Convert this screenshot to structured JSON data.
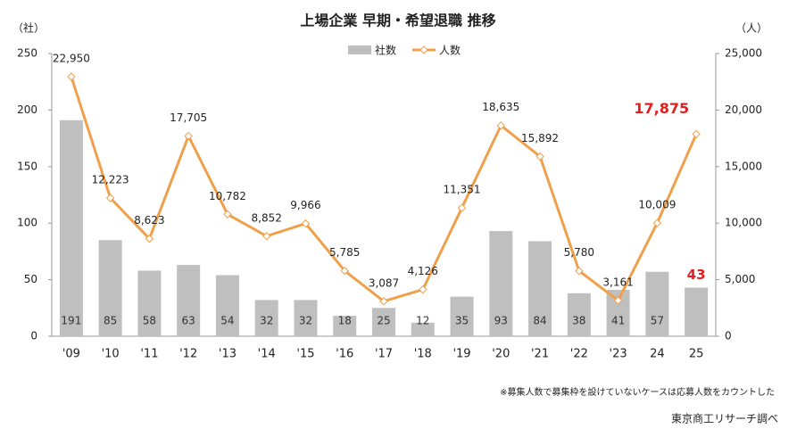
{
  "chart_data": {
    "type": "bar-line",
    "title": "上場企業 早期・希望退職 推移",
    "y_unit": "（社）",
    "y2_unit": "（人）",
    "note": "※募集人数で募集枠を設けていないケースは応募人数をカウントした",
    "source": "東京商工リサーチ調べ",
    "categories": [
      "'09",
      "'10",
      "'11",
      "'12",
      "'13",
      "'14",
      "'15",
      "'16",
      "'17",
      "'18",
      "'19",
      "'20",
      "'21",
      "'22",
      "'23",
      "24",
      "25"
    ],
    "series": [
      {
        "name": "社数",
        "type": "bar",
        "color": "#bfbfbf",
        "values": [
          191,
          85,
          58,
          63,
          54,
          32,
          32,
          18,
          25,
          12,
          35,
          93,
          84,
          38,
          41,
          57,
          43
        ]
      },
      {
        "name": "人数",
        "type": "line",
        "axis": "y2",
        "color": "#f0a04b",
        "values": [
          22950,
          12223,
          8623,
          17705,
          10782,
          8852,
          9966,
          5785,
          3087,
          4126,
          11351,
          18635,
          15892,
          5780,
          3161,
          10009,
          17875
        ],
        "value_labels": [
          "22,950",
          "12,223",
          "8,623",
          "17,705",
          "10,782",
          "8,852",
          "9,966",
          "5,785",
          "3,087",
          "4,126",
          "11,351",
          "18,635",
          "15,892",
          "5,780",
          "3,161",
          "10,009",
          "17,875"
        ]
      }
    ],
    "highlight_color": "#e02020",
    "ylim": [
      0,
      250
    ],
    "yticks": [
      0,
      50,
      100,
      150,
      200,
      250
    ],
    "y2lim": [
      0,
      25000
    ],
    "y2ticks": [
      0,
      {
        "value": 5000,
        "label": "5,000"
      },
      {
        "value": 10000,
        "label": "10,000"
      },
      {
        "value": 15000,
        "label": "15,000"
      },
      {
        "value": 20000,
        "label": "20,000"
      },
      {
        "value": 25000,
        "label": "25,000"
      }
    ]
  }
}
